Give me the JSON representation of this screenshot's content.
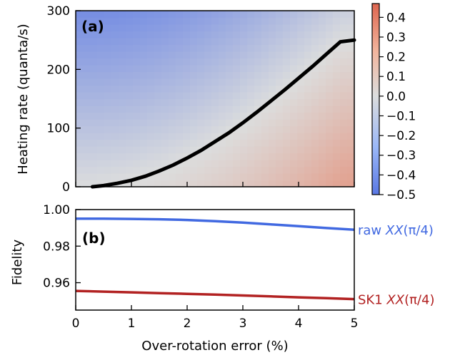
{
  "chart_data": [
    {
      "panel": "(a)",
      "type": "heatmap",
      "xlim": [
        0,
        5
      ],
      "ylim": [
        0,
        300
      ],
      "xticks": [
        0,
        1,
        2,
        3,
        4,
        5
      ],
      "yticks": [
        0,
        100,
        200,
        300
      ],
      "ytick_labels": [
        "0",
        "100",
        "200",
        "300"
      ],
      "ylabel": "Heating rate (quanta/s)",
      "colormap": "coolwarm",
      "color_low": "#5a78e4",
      "color_mid": "#dcdddd",
      "color_high": "#e58065",
      "colorbar": {
        "range": [
          -0.5,
          0.47
        ],
        "ticks": [
          0.4,
          0.3,
          0.2,
          0.1,
          0.0,
          -0.1,
          -0.2,
          -0.3,
          -0.4,
          -0.5
        ],
        "tick_labels": [
          "0.4",
          "0.3",
          "0.2",
          "0.1",
          "0.0",
          "−0.1",
          "−0.2",
          "−0.3",
          "−0.4",
          "−0.5"
        ]
      },
      "zero_contour": {
        "x": [
          0.3,
          0.5,
          0.75,
          1.0,
          1.25,
          1.5,
          1.75,
          2.0,
          2.25,
          2.5,
          2.75,
          3.0,
          3.25,
          3.5,
          3.75,
          4.0,
          4.25,
          4.5,
          4.75,
          5.0
        ],
        "y": [
          0,
          2,
          6,
          11,
          18,
          27,
          37,
          49,
          62,
          77,
          92,
          109,
          127,
          146,
          165,
          185,
          205,
          226,
          247,
          250
        ]
      }
    },
    {
      "panel": "(b)",
      "type": "line",
      "xlim": [
        0,
        5
      ],
      "ylim": [
        0.945,
        1.0
      ],
      "xticks": [
        0,
        1,
        2,
        3,
        4,
        5
      ],
      "xtick_labels": [
        "0",
        "1",
        "2",
        "3",
        "4",
        "5"
      ],
      "yticks": [
        0.96,
        0.98,
        1.0
      ],
      "ytick_labels": [
        "0.96",
        "0.98",
        "1.00"
      ],
      "xlabel": "Over-rotation error (%)",
      "ylabel": "Fidelity",
      "x": [
        0,
        0.5,
        1,
        1.5,
        2,
        2.5,
        3,
        3.5,
        4,
        4.5,
        5
      ],
      "series": [
        {
          "name": "raw XX(π/4)",
          "label_prefix": "raw ",
          "label_math": "XX",
          "label_arg": "(π/4)",
          "color": "#4169e1",
          "values": [
            0.995,
            0.995,
            0.9949,
            0.9947,
            0.9943,
            0.9937,
            0.9929,
            0.9919,
            0.9909,
            0.9899,
            0.989
          ]
        },
        {
          "name": "SK1 XX(π/4)",
          "label_prefix": "SK1 ",
          "label_math": "XX",
          "label_arg": "(π/4)",
          "color": "#b22222",
          "values": [
            0.9555,
            0.9551,
            0.9547,
            0.9543,
            0.9539,
            0.9535,
            0.953,
            0.9525,
            0.952,
            0.9515,
            0.951
          ]
        }
      ]
    }
  ]
}
